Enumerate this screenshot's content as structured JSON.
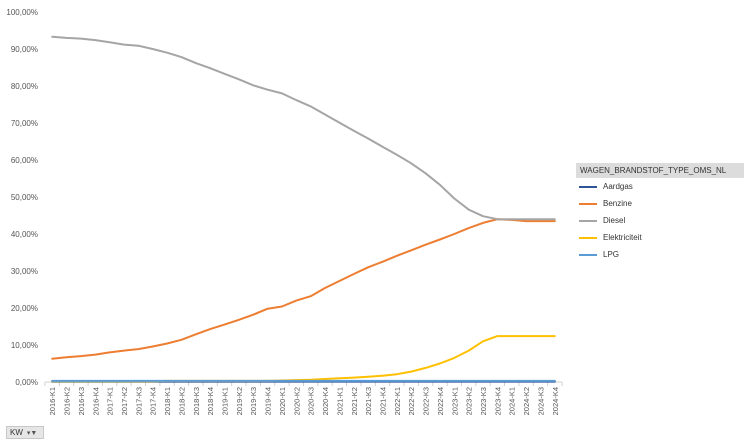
{
  "chart_data": {
    "type": "line",
    "title": "",
    "xlabel": "",
    "ylabel": "",
    "ylim": [
      0,
      100
    ],
    "yticks": [
      "0,00%",
      "10,00%",
      "20,00%",
      "30,00%",
      "40,00%",
      "50,00%",
      "60,00%",
      "70,00%",
      "80,00%",
      "90,00%",
      "100,00%"
    ],
    "categories": [
      "2016-K1",
      "2016-K2",
      "2016-K3",
      "2016-K4",
      "2017-K1",
      "2017-K2",
      "2017-K3",
      "2017-K4",
      "2018-K1",
      "2018-K2",
      "2018-K3",
      "2018-K4",
      "2019-K1",
      "2019-K2",
      "2019-K3",
      "2019-K4",
      "2020-K1",
      "2020-K2",
      "2020-K3",
      "2020-K4",
      "2021-K1",
      "2021-K2",
      "2021-K3",
      "2021-K4",
      "2022-K1",
      "2022-K2",
      "2022-K3",
      "2022-K4",
      "2023-K1",
      "2023-K2",
      "2023-K3",
      "2023-K4",
      "2024-K1",
      "2024-K2",
      "2024-K3",
      "2024-K4"
    ],
    "grid": false,
    "legend_position": "right",
    "legend_title": "WAGEN_BRANDSTOF_TYPE_OMS_NL",
    "series": [
      {
        "name": "Aardgas",
        "color": "#2e5597",
        "values": [
          0.1,
          0.1,
          0.1,
          0.1,
          0.1,
          0.1,
          0.1,
          0.1,
          0.1,
          0.1,
          0.1,
          0.1,
          0.1,
          0.1,
          0.1,
          0.1,
          0.1,
          0.1,
          0.1,
          0.1,
          0.1,
          0.1,
          0.1,
          0.1,
          0.1,
          0.1,
          0.1,
          0.1,
          0.1,
          0.1,
          0.1,
          0.1,
          0.1,
          0.1,
          0.1,
          0.1
        ]
      },
      {
        "name": "Benzine",
        "color": "#ed7d31",
        "values": [
          6.3,
          6.7,
          7.0,
          7.4,
          8.0,
          8.5,
          8.9,
          9.6,
          10.4,
          11.4,
          12.9,
          14.3,
          15.5,
          16.8,
          18.2,
          19.8,
          20.4,
          22.0,
          23.2,
          25.4,
          27.3,
          29.2,
          31.0,
          32.5,
          34.1,
          35.6,
          37.1,
          38.5,
          40.0,
          41.6,
          43.0,
          44.0,
          43.8,
          43.5,
          43.5,
          43.5
        ]
      },
      {
        "name": "Diesel",
        "color": "#a5a5a5",
        "values": [
          93.3,
          93.0,
          92.8,
          92.4,
          91.8,
          91.2,
          90.9,
          90.0,
          89.0,
          87.8,
          86.2,
          84.8,
          83.3,
          81.8,
          80.2,
          79.0,
          78.0,
          76.2,
          74.5,
          72.3,
          70.1,
          67.9,
          65.8,
          63.6,
          61.4,
          59.1,
          56.4,
          53.3,
          49.6,
          46.6,
          44.8,
          44.0,
          44.0,
          44.0,
          44.0,
          44.0
        ]
      },
      {
        "name": "Elektriciteit",
        "color": "#ffc000",
        "values": [
          0.2,
          0.2,
          0.2,
          0.2,
          0.2,
          0.2,
          0.2,
          0.2,
          0.3,
          0.3,
          0.3,
          0.3,
          0.3,
          0.3,
          0.3,
          0.3,
          0.4,
          0.5,
          0.6,
          0.8,
          1.0,
          1.2,
          1.4,
          1.7,
          2.1,
          2.8,
          3.8,
          5.0,
          6.5,
          8.5,
          11.0,
          12.4,
          12.4,
          12.4,
          12.4,
          12.4
        ]
      },
      {
        "name": "LPG",
        "color": "#5b9bd5",
        "values": [
          0.3,
          0.3,
          0.3,
          0.3,
          0.3,
          0.3,
          0.3,
          0.3,
          0.3,
          0.3,
          0.3,
          0.3,
          0.3,
          0.3,
          0.3,
          0.3,
          0.3,
          0.3,
          0.3,
          0.3,
          0.3,
          0.3,
          0.3,
          0.3,
          0.3,
          0.3,
          0.3,
          0.3,
          0.3,
          0.3,
          0.3,
          0.3,
          0.3,
          0.3,
          0.3,
          0.3
        ]
      }
    ]
  },
  "field_button": {
    "label": "KW",
    "icon": "filter-dropdown-icon"
  }
}
